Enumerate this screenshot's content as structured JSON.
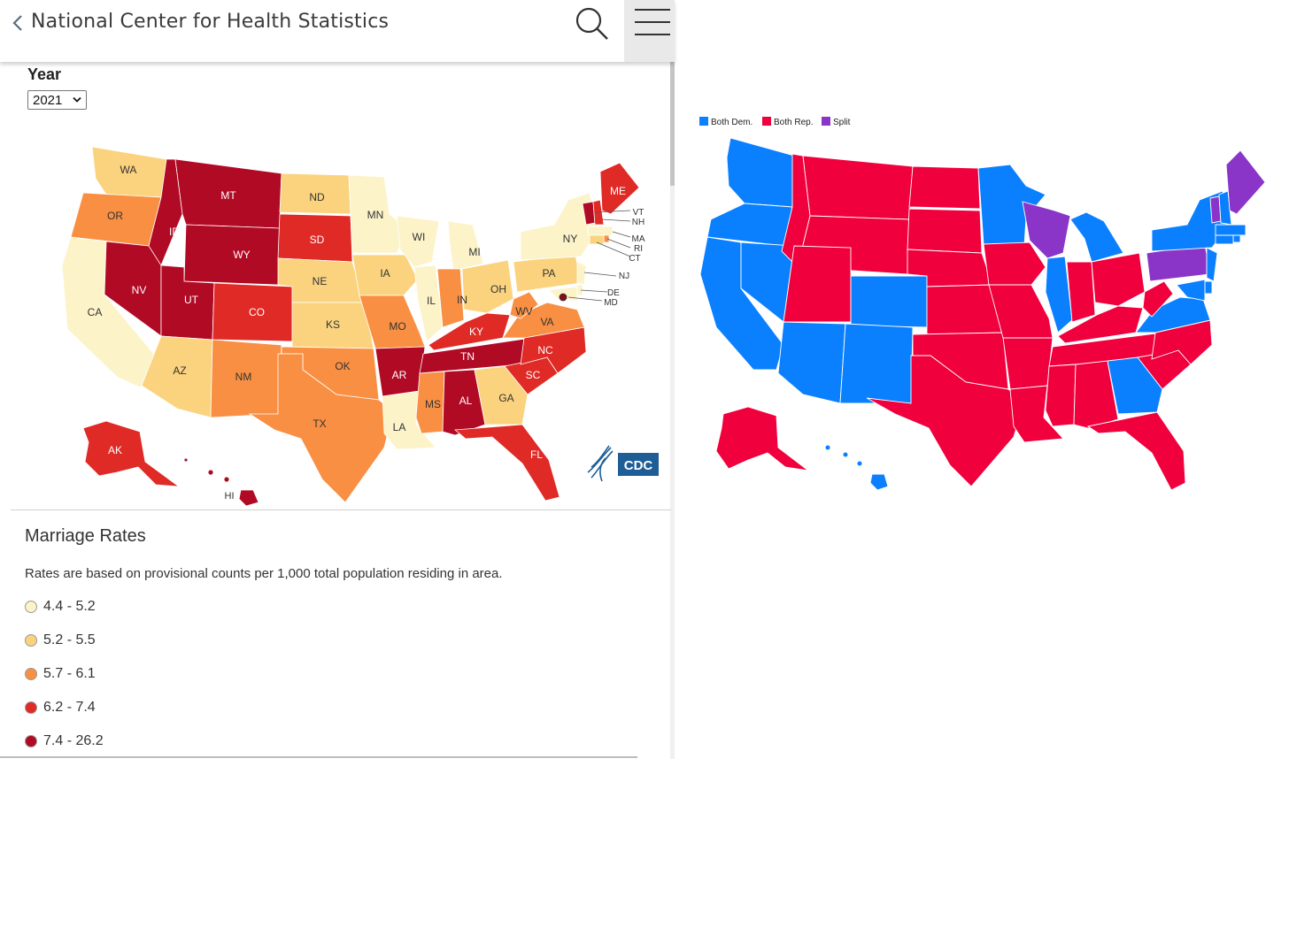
{
  "header": {
    "title": "National Center for Health Statistics"
  },
  "filter": {
    "label": "Year",
    "selected": "2021"
  },
  "map_marriage": {
    "logo_text": "CDC",
    "colors": {
      "c1": "#fcf3c9",
      "c2": "#fbd37f",
      "c3": "#f98f43",
      "c4": "#df2a26",
      "c5": "#b10a25"
    },
    "states": {
      "WA": "WA",
      "OR": "OR",
      "CA": "CA",
      "ID": "ID",
      "NV": "NV",
      "MT": "MT",
      "WY": "WY",
      "UT": "UT",
      "AZ": "AZ",
      "CO": "CO",
      "NM": "NM",
      "ND": "ND",
      "SD": "SD",
      "NE": "NE",
      "KS": "KS",
      "OK": "OK",
      "TX": "TX",
      "MN": "MN",
      "IA": "IA",
      "MO": "MO",
      "AR": "AR",
      "LA": "LA",
      "WI": "WI",
      "IL": "IL",
      "MI": "MI",
      "IN": "IN",
      "OH": "OH",
      "KY": "KY",
      "TN": "TN",
      "MS": "MS",
      "AL": "AL",
      "GA": "GA",
      "FL": "FL",
      "SC": "SC",
      "NC": "NC",
      "VA": "VA",
      "WV": "WV",
      "PA": "PA",
      "NY": "NY",
      "ME": "ME",
      "VT": "VT",
      "NH": "NH",
      "MA": "MA",
      "RI": "RI",
      "CT": "CT",
      "NJ": "NJ",
      "DE": "DE",
      "MD": "MD",
      "AK": "AK",
      "HI": "HI"
    }
  },
  "legend": {
    "title": "Marriage Rates",
    "note": "Rates are based on provisional counts per 1,000 total population residing in area.",
    "items": [
      {
        "label": "4.4 - 5.2",
        "color": "#fcf3c9"
      },
      {
        "label": "5.2 - 5.5",
        "color": "#fbd37f"
      },
      {
        "label": "5.7 - 6.1",
        "color": "#f98f43"
      },
      {
        "label": "6.2 - 7.4",
        "color": "#df2a26"
      },
      {
        "label": "7.4 - 26.2",
        "color": "#b10a25"
      }
    ]
  },
  "map_party": {
    "legend": [
      {
        "label": "Both Dem.",
        "color": "#0a80ff"
      },
      {
        "label": "Both Rep.",
        "color": "#f0003c"
      },
      {
        "label": "Split",
        "color": "#8a35c8"
      }
    ]
  }
}
